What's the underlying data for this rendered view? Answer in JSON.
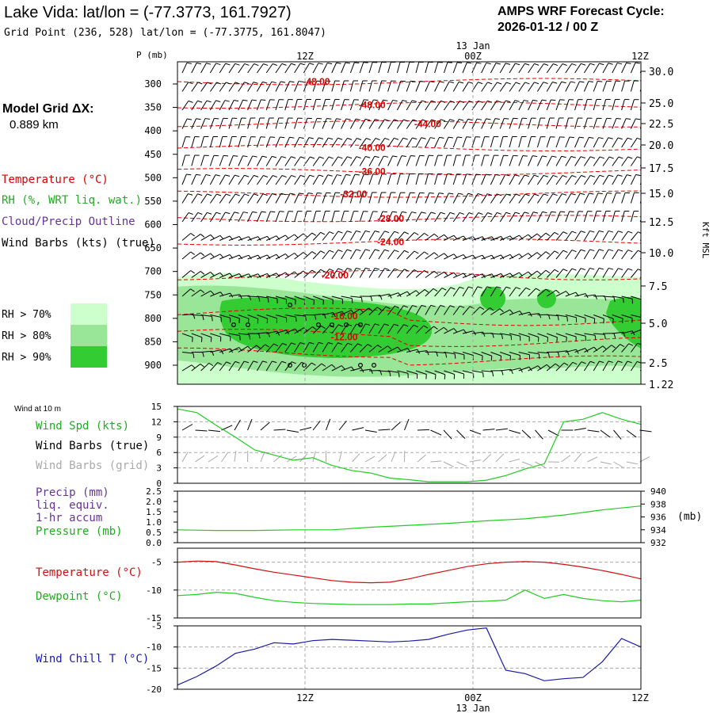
{
  "header": {
    "title": "Lake Vida:  lat/lon = (-77.3773, 161.7927)",
    "subtitle": "Grid Point (236, 528) lat/lon = (-77.3775, 161.8047)",
    "forecast_title": "AMPS WRF Forecast Cycle:",
    "forecast_cycle": "2026-01-12 / 00  Z"
  },
  "time_axis": {
    "labels": [
      "12Z",
      "00Z",
      "12Z"
    ],
    "date_label": "13 Jan"
  },
  "model_grid": {
    "label": "Model Grid ΔX:",
    "value": "0.889 km"
  },
  "legend_upper": {
    "temperature": "Temperature (°C)",
    "rh": "RH (%, WRT liq. wat.)",
    "cloud": "Cloud/Precip Outline",
    "wind": "Wind Barbs (kts) (true)",
    "rh_levels": [
      "RH > 70%",
      "RH > 80%",
      "RH > 90%"
    ]
  },
  "colors": {
    "temp": "#e00000",
    "rh70": "#ccffcc",
    "rh80": "#99e699",
    "rh90": "#33cc33",
    "green_line": "#22cc22",
    "red_line": "#cc1111",
    "blue_line": "#1a1aaa",
    "purple": "#663399",
    "grey_barb": "#aaaaaa",
    "grid": "#aaaaaa"
  },
  "chart_data": [
    {
      "type": "heatmap",
      "name": "cross-section",
      "ylabel_left": "P (mb)",
      "ylabel_right": "Kft MSL",
      "pressure_ticks": [
        300,
        350,
        400,
        450,
        500,
        550,
        600,
        650,
        700,
        750,
        800,
        850,
        900
      ],
      "height_ticks": [
        "30.0",
        "25.0",
        "22.5",
        "20.0",
        "17.5",
        "15.0",
        "12.5",
        "10.0",
        "7.5",
        "5.0",
        "2.5",
        "1.22"
      ],
      "isotherm_labels": [
        {
          "label": "-48.00",
          "t": 0.3,
          "p": 295
        },
        {
          "label": "-48.00",
          "t": 0.42,
          "p": 345
        },
        {
          "label": "-44.00",
          "t": 0.54,
          "p": 385
        },
        {
          "label": "-40.00",
          "t": 0.42,
          "p": 436
        },
        {
          "label": "-36.00",
          "t": 0.42,
          "p": 487
        },
        {
          "label": "-32.00",
          "t": 0.38,
          "p": 535
        },
        {
          "label": "-28.00",
          "t": 0.46,
          "p": 587
        },
        {
          "label": "-24.00",
          "t": 0.46,
          "p": 637
        },
        {
          "label": "-20.00",
          "t": 0.34,
          "p": 708
        },
        {
          "label": "-16.00",
          "t": 0.36,
          "p": 795
        },
        {
          "label": "-12.00",
          "t": 0.36,
          "p": 840
        }
      ],
      "rh_regions_note": "shaded RH > 70/80/90 % between ~700 and ~950 mb",
      "wind_barbs": "shown at every level and time"
    },
    {
      "type": "line",
      "name": "wind-10m",
      "title": "Wind at 10 m",
      "labels": [
        "Wind Spd (kts)",
        "Wind Barbs (true)",
        "Wind Barbs (grid)"
      ],
      "yticks": [
        0,
        3,
        6,
        9,
        12,
        15
      ],
      "ylim": [
        0,
        15
      ],
      "series": [
        {
          "name": "Wind Spd (kts)",
          "x": [
            0,
            1,
            2,
            3,
            4,
            5,
            6,
            7,
            8,
            9,
            10,
            11,
            12,
            13,
            14,
            15,
            16,
            17,
            18,
            19,
            20,
            21,
            22,
            23,
            24
          ],
          "values": [
            14.5,
            13.8,
            11.3,
            9.0,
            6.5,
            5.5,
            4.5,
            5.0,
            3.5,
            2.5,
            2.0,
            1.0,
            0.7,
            0.3,
            0.3,
            0.3,
            0.6,
            1.5,
            2.8,
            3.8,
            12.0,
            12.5,
            13.8,
            12.5,
            11.5
          ]
        }
      ]
    },
    {
      "type": "line",
      "name": "precip-pressure",
      "labels": [
        "Precip (mm)",
        "liq. equiv.",
        "1-hr accum",
        "Pressure (mb)"
      ],
      "yticks_left": [
        "0.0",
        "0.5",
        "1.0",
        "1.5",
        "2.0",
        "2.5"
      ],
      "yticks_right": [
        "932",
        "934",
        "936",
        "938",
        "940"
      ],
      "right_unit": "(mb)",
      "ylim_left": [
        0,
        2.5
      ],
      "ylim_right": [
        932,
        940
      ],
      "series": [
        {
          "name": "Pressure (mb)",
          "axis": "right",
          "x": [
            0,
            2,
            4,
            6,
            8,
            10,
            12,
            14,
            16,
            18,
            20,
            22,
            24
          ],
          "values": [
            934.0,
            933.9,
            933.9,
            934.0,
            934.0,
            934.4,
            934.7,
            935.0,
            935.4,
            935.7,
            936.3,
            937.1,
            937.7
          ]
        }
      ]
    },
    {
      "type": "line",
      "name": "temp-dewpoint",
      "labels": [
        "Temperature (°C)",
        "Dewpoint (°C)"
      ],
      "yticks": [
        -5,
        -10,
        -15
      ],
      "ylim": [
        -15,
        -2.5
      ],
      "series": [
        {
          "name": "Temperature (°C)",
          "x": [
            0,
            1,
            2,
            3,
            4,
            5,
            6,
            7,
            8,
            9,
            10,
            11,
            12,
            13,
            14,
            15,
            16,
            17,
            18,
            19,
            20,
            21,
            22,
            23,
            24
          ],
          "values": [
            -5.0,
            -4.8,
            -4.9,
            -5.5,
            -6.2,
            -6.8,
            -7.3,
            -7.8,
            -8.3,
            -8.6,
            -8.7,
            -8.6,
            -8.0,
            -7.2,
            -6.5,
            -5.8,
            -5.3,
            -5.0,
            -4.9,
            -5.0,
            -5.4,
            -5.9,
            -6.5,
            -7.2,
            -8.0
          ]
        },
        {
          "name": "Dewpoint (°C)",
          "x": [
            0,
            1,
            2,
            3,
            4,
            5,
            6,
            7,
            8,
            9,
            10,
            11,
            12,
            13,
            14,
            15,
            16,
            17,
            18,
            19,
            20,
            21,
            22,
            23,
            24
          ],
          "values": [
            -11.0,
            -10.8,
            -10.4,
            -10.6,
            -11.3,
            -11.9,
            -12.2,
            -12.4,
            -12.5,
            -12.6,
            -12.6,
            -12.6,
            -12.5,
            -12.5,
            -12.3,
            -12.1,
            -12.0,
            -11.8,
            -10.0,
            -11.5,
            -10.8,
            -11.5,
            -11.9,
            -12.1,
            -11.8
          ]
        }
      ]
    },
    {
      "type": "line",
      "name": "wind-chill",
      "labels": [
        "Wind Chill T (°C)"
      ],
      "yticks": [
        -5,
        -10,
        -15,
        -20
      ],
      "ylim": [
        -20,
        -5
      ],
      "series": [
        {
          "name": "Wind Chill T (°C)",
          "x": [
            0,
            1,
            2,
            3,
            4,
            5,
            6,
            7,
            8,
            9,
            10,
            11,
            12,
            13,
            14,
            15,
            16,
            17,
            18,
            19,
            20,
            21,
            22,
            23,
            24
          ],
          "values": [
            -19.0,
            -17.0,
            -14.5,
            -11.5,
            -10.5,
            -9.0,
            -9.3,
            -8.5,
            -8.2,
            -8.4,
            -8.6,
            -8.8,
            -8.6,
            -8.2,
            -7.0,
            -6.0,
            -5.5,
            -15.5,
            -16.3,
            -18.0,
            -17.5,
            -17.2,
            -13.5,
            -8.0,
            -10.0
          ]
        }
      ]
    }
  ]
}
